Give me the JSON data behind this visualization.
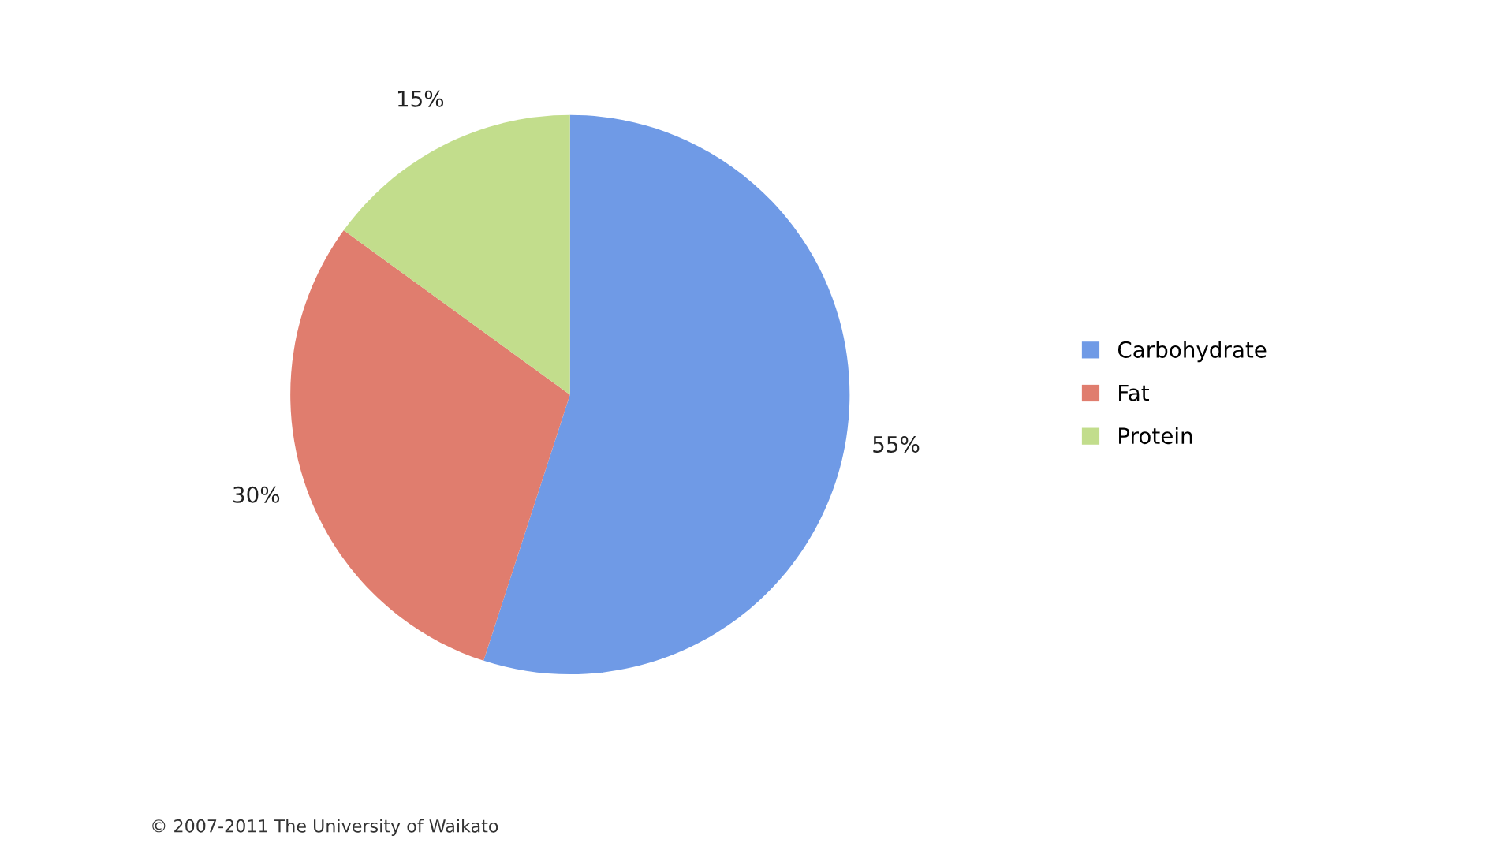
{
  "chart_data": {
    "type": "pie",
    "categories": [
      "Carbohydrate",
      "Fat",
      "Protein"
    ],
    "values": [
      55,
      30,
      15
    ],
    "colors": [
      "#6f9ae6",
      "#e07d6e",
      "#c2dd8c"
    ],
    "value_labels": [
      "55%",
      "30%",
      "15%"
    ],
    "legend": "right",
    "annotations": [
      "© 2007-2011 The University of Waikato"
    ]
  }
}
